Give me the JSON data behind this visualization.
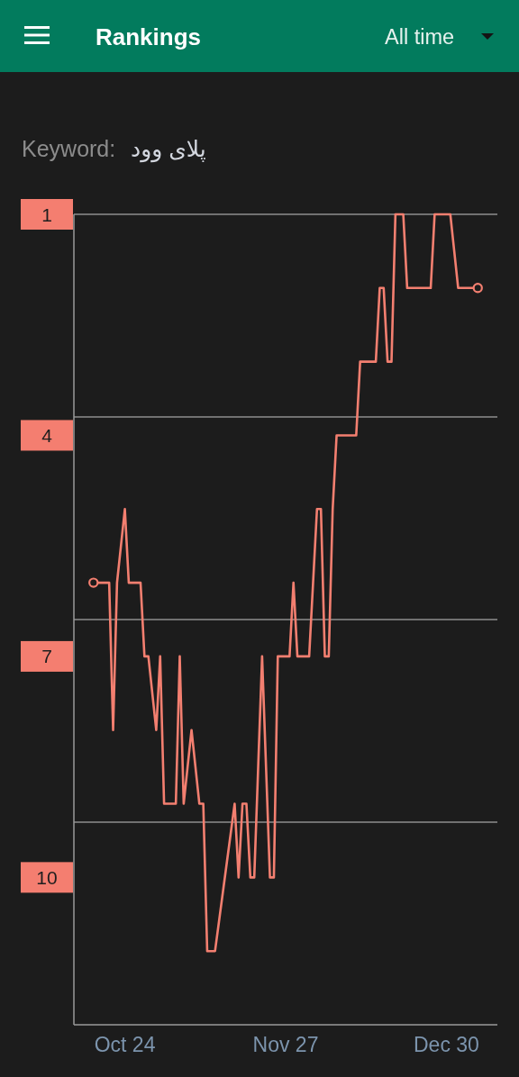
{
  "chart_data": {
    "type": "line",
    "title": "Rankings",
    "annotations": [
      "All time",
      "Keyword:",
      "پلای وود"
    ],
    "categories": [
      null,
      null,
      null,
      null,
      null,
      null,
      null,
      null,
      "Oct 24",
      null,
      null,
      null,
      null,
      null,
      null,
      null,
      null,
      null,
      null,
      null,
      null,
      null,
      null,
      null,
      null,
      null,
      null,
      null,
      null,
      null,
      null,
      null,
      null,
      null,
      null,
      null,
      null,
      null,
      null,
      null,
      null,
      null,
      null,
      null,
      null,
      null,
      null,
      null,
      null,
      "Nov 27",
      null,
      null,
      null,
      null,
      null,
      null,
      null,
      null,
      null,
      null,
      null,
      null,
      null,
      null,
      null,
      null,
      null,
      null,
      null,
      null,
      null,
      null,
      null,
      null,
      null,
      null,
      null,
      null,
      null,
      null,
      null,
      null,
      null,
      null,
      null,
      null,
      null,
      null,
      null,
      null,
      "Dec 30",
      null,
      null,
      null,
      null,
      null,
      null,
      null,
      null
    ],
    "series": [
      {
        "color": "#f37f70",
        "values": [
          6,
          6,
          6,
          6,
          6,
          8,
          6,
          5.5,
          5,
          6,
          6,
          6,
          6,
          7,
          7,
          7.5,
          8,
          7,
          9,
          9,
          9,
          9,
          7,
          9,
          8.5,
          8,
          8.5,
          9,
          9,
          11,
          11,
          11,
          10.6,
          10.2,
          9.8,
          9.4,
          9,
          10,
          9,
          9,
          10,
          10,
          8.5,
          7,
          8.5,
          10,
          10,
          7,
          7,
          7,
          7,
          6,
          7,
          7,
          7,
          7,
          6,
          5,
          5,
          7,
          7,
          5,
          4,
          4,
          4,
          4,
          4,
          4,
          3,
          3,
          3,
          3,
          3,
          2,
          2,
          3,
          3,
          1,
          1,
          1,
          2,
          2,
          2,
          2,
          2,
          2,
          2,
          1,
          1,
          1,
          1,
          1,
          1.5,
          2,
          2,
          2,
          2,
          2,
          2
        ]
      },
      {
        "type": "scatter",
        "color": "#f37f70",
        "marker": "circle",
        "values": [
          6,
          null,
          null,
          null,
          null,
          null,
          null,
          null,
          null,
          null,
          null,
          null,
          null,
          null,
          null,
          null,
          null,
          null,
          null,
          null,
          null,
          null,
          null,
          null,
          null,
          null,
          null,
          null,
          null,
          null,
          null,
          null,
          null,
          null,
          null,
          null,
          null,
          null,
          null,
          null,
          null,
          null,
          null,
          null,
          null,
          null,
          null,
          null,
          null,
          null,
          null,
          null,
          null,
          null,
          null,
          null,
          null,
          null,
          null,
          null,
          null,
          null,
          null,
          null,
          null,
          null,
          null,
          null,
          null,
          null,
          null,
          null,
          null,
          null,
          null,
          null,
          null,
          null,
          null,
          null,
          null,
          null,
          null,
          null,
          null,
          null,
          null,
          null,
          null,
          null,
          null,
          null,
          null,
          null,
          null,
          null,
          null,
          null,
          2
        ]
      }
    ],
    "ylim": [
      12,
      1
    ],
    "yticks": [
      1,
      4,
      7,
      10
    ],
    "ref_lines": [
      {
        "axis": "y",
        "value": 1,
        "color": "#8e8e8e"
      },
      {
        "axis": "y",
        "value": 3.75,
        "color": "#8e8e8e"
      },
      {
        "axis": "y",
        "value": 6.5,
        "color": "#8e8e8e"
      },
      {
        "axis": "y",
        "value": 9.25,
        "color": "#8e8e8e"
      }
    ]
  }
}
